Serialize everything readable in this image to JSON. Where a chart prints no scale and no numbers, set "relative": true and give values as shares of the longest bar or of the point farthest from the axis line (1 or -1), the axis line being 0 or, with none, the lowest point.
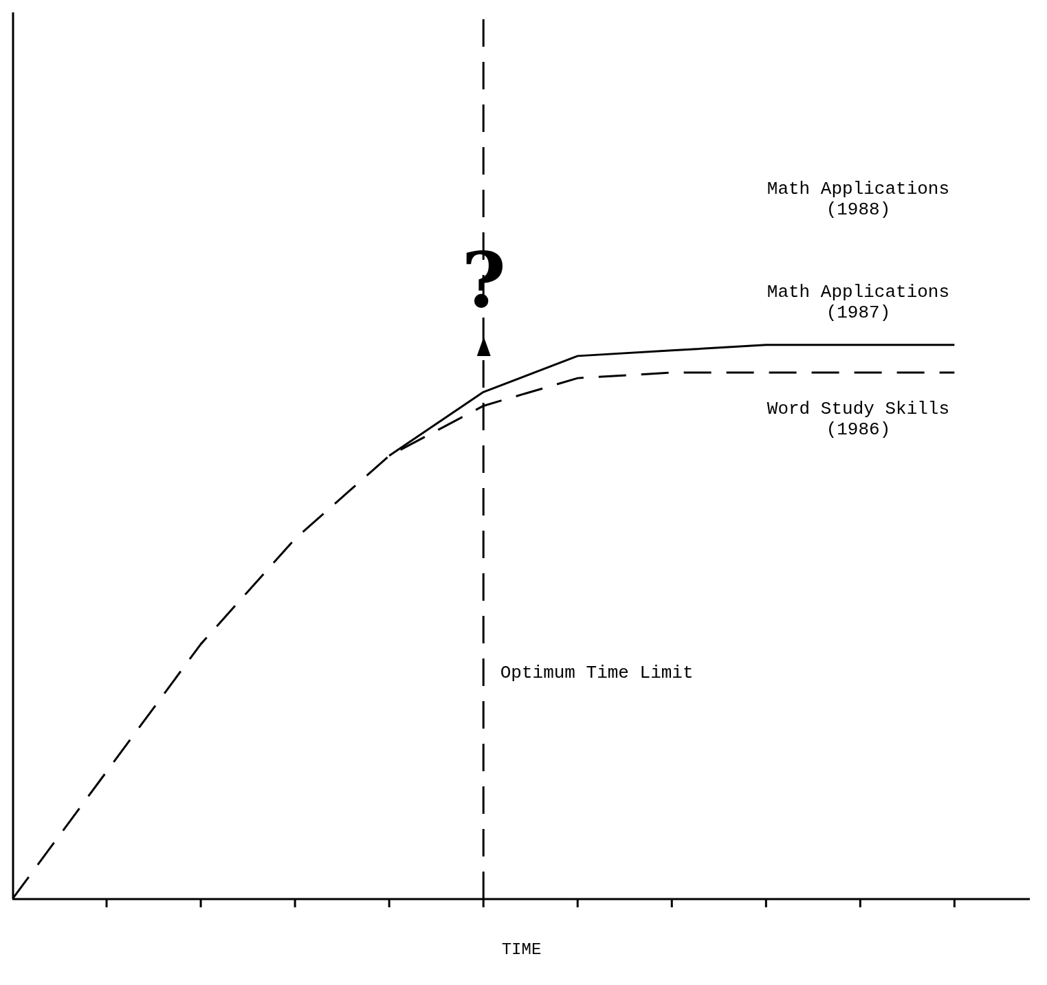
{
  "chart_data": {
    "type": "line",
    "relative": true,
    "xlabel": "TIME",
    "categories": [
      null,
      null,
      null,
      null,
      null,
      null,
      null,
      null,
      null,
      null,
      null
    ],
    "series": [
      {
        "name": "Math Applications (1987)",
        "color": "#000000",
        "line_style": "solid",
        "values": [
          null,
          null,
          null,
          null,
          0.8,
          0.915,
          0.98,
          0.99,
          1,
          1,
          1
        ]
      },
      {
        "name": "Word Study Skills (1986)",
        "color": "#000000",
        "line_style": "dashed",
        "values": [
          0,
          0.23,
          0.46,
          0.65,
          0.8,
          0.89,
          0.94,
          0.95,
          0.95,
          0.95,
          0.95
        ]
      }
    ],
    "annotations": [
      "Math Applications (1988)",
      "?",
      "Optimum Time Limit"
    ],
    "marker": "none"
  }
}
